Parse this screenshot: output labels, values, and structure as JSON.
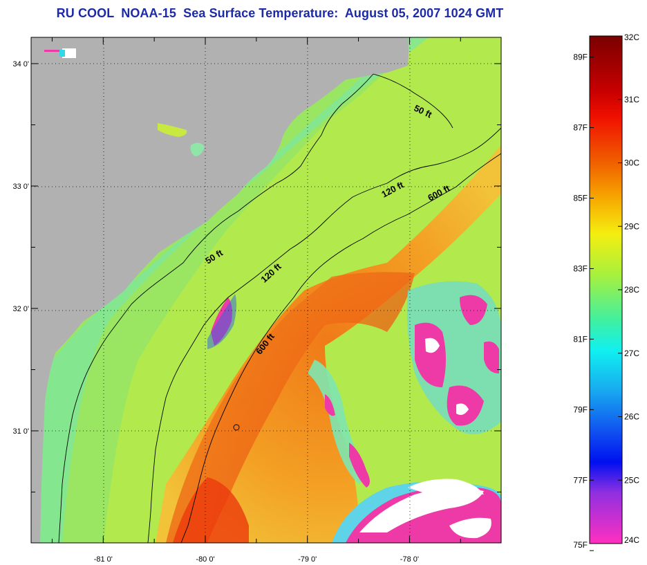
{
  "title": "RU COOL  NOAA-15  Sea Surface Temperature:  August 05, 2007 1024 GMT",
  "map": {
    "lat_ticks": [
      {
        "label": "34 0'",
        "value": 34
      },
      {
        "label": "33 0'",
        "value": 33
      },
      {
        "label": "32 0'",
        "value": 32
      },
      {
        "label": "31 0'",
        "value": 31
      }
    ],
    "lon_ticks": [
      {
        "label": "-81 0'",
        "value": -81
      },
      {
        "label": "-80 0'",
        "value": -80
      },
      {
        "label": "-79 0'",
        "value": -79
      },
      {
        "label": "-78 0'",
        "value": -78
      }
    ],
    "contour_labels": [
      {
        "label": "50 ft",
        "id": "north"
      },
      {
        "label": "120 ft",
        "id": "north"
      },
      {
        "label": "600 ft",
        "id": "north"
      },
      {
        "label": "50 ft",
        "id": "south"
      },
      {
        "label": "120 ft",
        "id": "south"
      },
      {
        "label": "600 ft",
        "id": "south"
      }
    ],
    "colors": {
      "land": "#b1b1b1",
      "ocean_shelf": "#8ee66a",
      "ocean_mid": "#b8ea4c",
      "gulf_stream": "#f3a224",
      "gulf_stream_core": "#f06a10",
      "cold": "#ee3aa6",
      "cloud": "#ffffff"
    }
  },
  "colorbar": {
    "celsius": [
      "32C",
      "31C",
      "30C",
      "29C",
      "28C",
      "27C",
      "26C",
      "25C",
      "24C"
    ],
    "fahrenheit": [
      "89F",
      "87F",
      "85F",
      "83F",
      "81F",
      "79F",
      "77F",
      "75F"
    ],
    "celsius_range": [
      24,
      32
    ],
    "fahrenheit_range": [
      75.2,
      89.6
    ]
  }
}
